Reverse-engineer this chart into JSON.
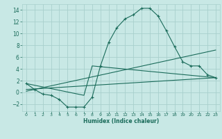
{
  "xlabel": "Humidex (Indice chaleur)",
  "bg_color": "#c8e8e5",
  "grid_color": "#a8d0cc",
  "line_color": "#1a6b5a",
  "xlim": [
    -0.5,
    23.5
  ],
  "ylim": [
    -3.2,
    15.0
  ],
  "yticks": [
    -2,
    0,
    2,
    4,
    6,
    8,
    10,
    12,
    14
  ],
  "xticks": [
    0,
    1,
    2,
    3,
    4,
    5,
    6,
    7,
    8,
    9,
    10,
    11,
    12,
    13,
    14,
    15,
    16,
    17,
    18,
    19,
    20,
    21,
    22,
    23
  ],
  "line1_x": [
    0,
    1,
    2,
    3,
    4,
    5,
    6,
    7,
    8,
    9,
    10,
    11,
    12,
    13,
    14,
    15,
    16,
    17,
    18,
    19,
    20,
    21,
    22,
    23
  ],
  "line1_y": [
    1.5,
    0.5,
    -0.3,
    -0.5,
    -1.2,
    -2.5,
    -2.5,
    -2.5,
    -0.8,
    4.5,
    8.5,
    11.0,
    12.5,
    13.2,
    14.3,
    14.3,
    13.0,
    10.5,
    7.8,
    5.2,
    4.5,
    4.5,
    3.0,
    2.5
  ],
  "line2_x": [
    0,
    7,
    8,
    23
  ],
  "line2_y": [
    1.5,
    -0.5,
    4.5,
    2.5
  ],
  "line3_x": [
    0,
    23
  ],
  "line3_y": [
    0.5,
    2.5
  ],
  "line4_x": [
    0,
    23
  ],
  "line4_y": [
    0.2,
    7.2
  ]
}
